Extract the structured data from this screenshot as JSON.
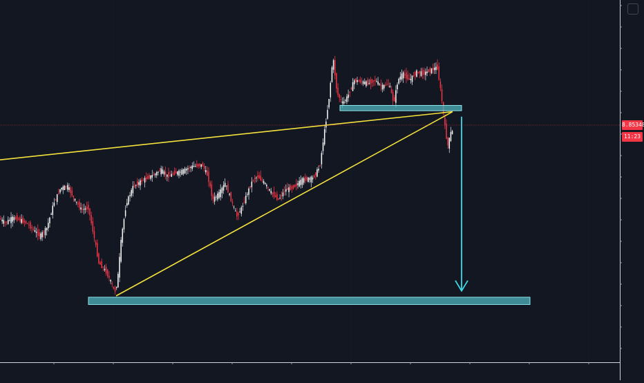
{
  "chart_data": {
    "type": "candlestick",
    "price_scale": {
      "last_price": "8.85348",
      "countdown": "11:23"
    },
    "x_ticks": [
      "",
      "",
      "",
      "",
      "",
      "",
      "",
      "",
      "",
      ""
    ],
    "series_colors": {
      "up": "#ffffff",
      "down": "#f23645",
      "wick_down": "#f23645",
      "wick_up": "#cfd2da"
    },
    "colors": {
      "background": "#131722",
      "grid": "#2a2e39",
      "trendline": "#f5e23c",
      "zone_fill": "#4fb3bd",
      "zone_border": "#8fe3ea",
      "projection_arrow": "#3ddbe8",
      "price_line": "#f23645"
    },
    "price_path": [
      [
        0,
        0.385
      ],
      [
        10,
        0.37
      ],
      [
        20,
        0.385
      ],
      [
        30,
        0.38
      ],
      [
        40,
        0.37
      ],
      [
        50,
        0.35
      ],
      [
        60,
        0.33
      ],
      [
        70,
        0.355
      ],
      [
        80,
        0.43
      ],
      [
        90,
        0.475
      ],
      [
        100,
        0.48
      ],
      [
        110,
        0.44
      ],
      [
        120,
        0.41
      ],
      [
        130,
        0.415
      ],
      [
        138,
        0.33
      ],
      [
        145,
        0.25
      ],
      [
        155,
        0.225
      ],
      [
        163,
        0.19
      ],
      [
        168,
        0.16
      ],
      [
        172,
        0.19
      ],
      [
        178,
        0.33
      ],
      [
        185,
        0.43
      ],
      [
        195,
        0.48
      ],
      [
        210,
        0.5
      ],
      [
        225,
        0.515
      ],
      [
        235,
        0.53
      ],
      [
        245,
        0.51
      ],
      [
        255,
        0.52
      ],
      [
        265,
        0.525
      ],
      [
        280,
        0.54
      ],
      [
        295,
        0.545
      ],
      [
        303,
        0.51
      ],
      [
        310,
        0.44
      ],
      [
        320,
        0.46
      ],
      [
        328,
        0.49
      ],
      [
        338,
        0.43
      ],
      [
        345,
        0.39
      ],
      [
        352,
        0.415
      ],
      [
        360,
        0.46
      ],
      [
        368,
        0.5
      ],
      [
        375,
        0.51
      ],
      [
        385,
        0.49
      ],
      [
        395,
        0.46
      ],
      [
        405,
        0.44
      ],
      [
        415,
        0.47
      ],
      [
        425,
        0.475
      ],
      [
        440,
        0.5
      ],
      [
        455,
        0.505
      ],
      [
        465,
        0.54
      ],
      [
        470,
        0.62
      ],
      [
        478,
        0.74
      ],
      [
        484,
        0.87
      ],
      [
        490,
        0.76
      ],
      [
        498,
        0.73
      ],
      [
        505,
        0.75
      ],
      [
        515,
        0.8
      ],
      [
        525,
        0.795
      ],
      [
        535,
        0.79
      ],
      [
        545,
        0.8
      ],
      [
        555,
        0.78
      ],
      [
        565,
        0.79
      ],
      [
        572,
        0.73
      ],
      [
        578,
        0.8
      ],
      [
        585,
        0.82
      ],
      [
        595,
        0.8
      ],
      [
        605,
        0.825
      ],
      [
        615,
        0.82
      ],
      [
        625,
        0.83
      ],
      [
        635,
        0.84
      ],
      [
        641,
        0.75
      ],
      [
        646,
        0.66
      ],
      [
        650,
        0.6
      ],
      [
        655,
        0.645
      ]
    ],
    "trendlines": [
      {
        "from": [
          0,
          0.56
        ],
        "to": [
          655,
          0.705
        ]
      },
      {
        "from": [
          168,
          0.15
        ],
        "to": [
          655,
          0.705
        ]
      }
    ],
    "zones": [
      {
        "x_start": 492,
        "x_end": 668,
        "low": 0.708,
        "high": 0.724
      },
      {
        "x_start": 128,
        "x_end": 767,
        "low": 0.124,
        "high": 0.146
      }
    ],
    "projection": {
      "x": 668,
      "from": 0.69,
      "to": 0.165
    }
  }
}
